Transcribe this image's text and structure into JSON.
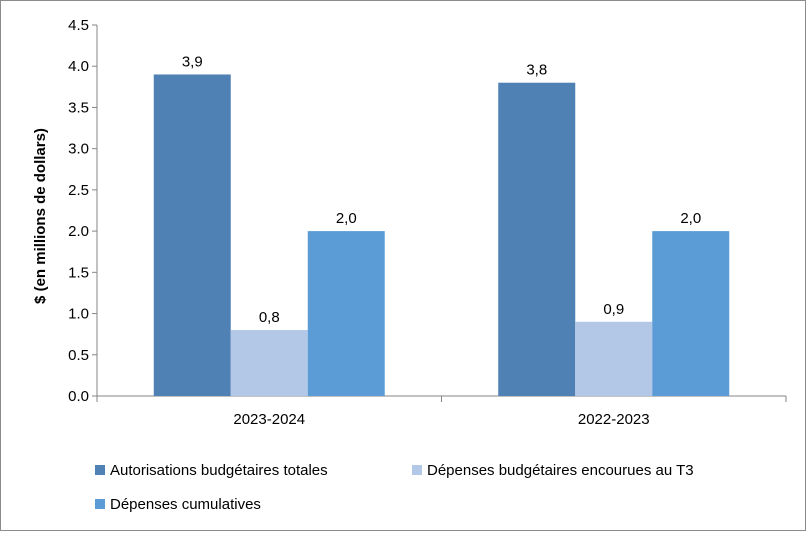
{
  "chart_data": {
    "type": "bar",
    "title": "",
    "xlabel": "",
    "ylabel": "$ (en millions de dollars)",
    "ylim": [
      0,
      4.5
    ],
    "ytick_step": 0.5,
    "yticks": [
      "0.0",
      "0.5",
      "1.0",
      "1.5",
      "2.0",
      "2.5",
      "3.0",
      "3.5",
      "4.0",
      "4.5"
    ],
    "categories": [
      "2023-2024",
      "2022-2023"
    ],
    "grid": false,
    "legend_position": "bottom",
    "series": [
      {
        "name": "Autorisations budgétaires totales",
        "color": "#4f81b5",
        "values": [
          3.9,
          3.8
        ],
        "labels": [
          "3,9",
          "3,8"
        ]
      },
      {
        "name": "Dépenses budgétaires encourues au T3",
        "color": "#b3c8e6",
        "values": [
          0.8,
          0.9
        ],
        "labels": [
          "0,8",
          "0,9"
        ]
      },
      {
        "name": "Dépenses cumulatives",
        "color": "#5b9bd6",
        "values": [
          2.0,
          2.0
        ],
        "labels": [
          "2,0",
          "2,0"
        ]
      }
    ]
  }
}
